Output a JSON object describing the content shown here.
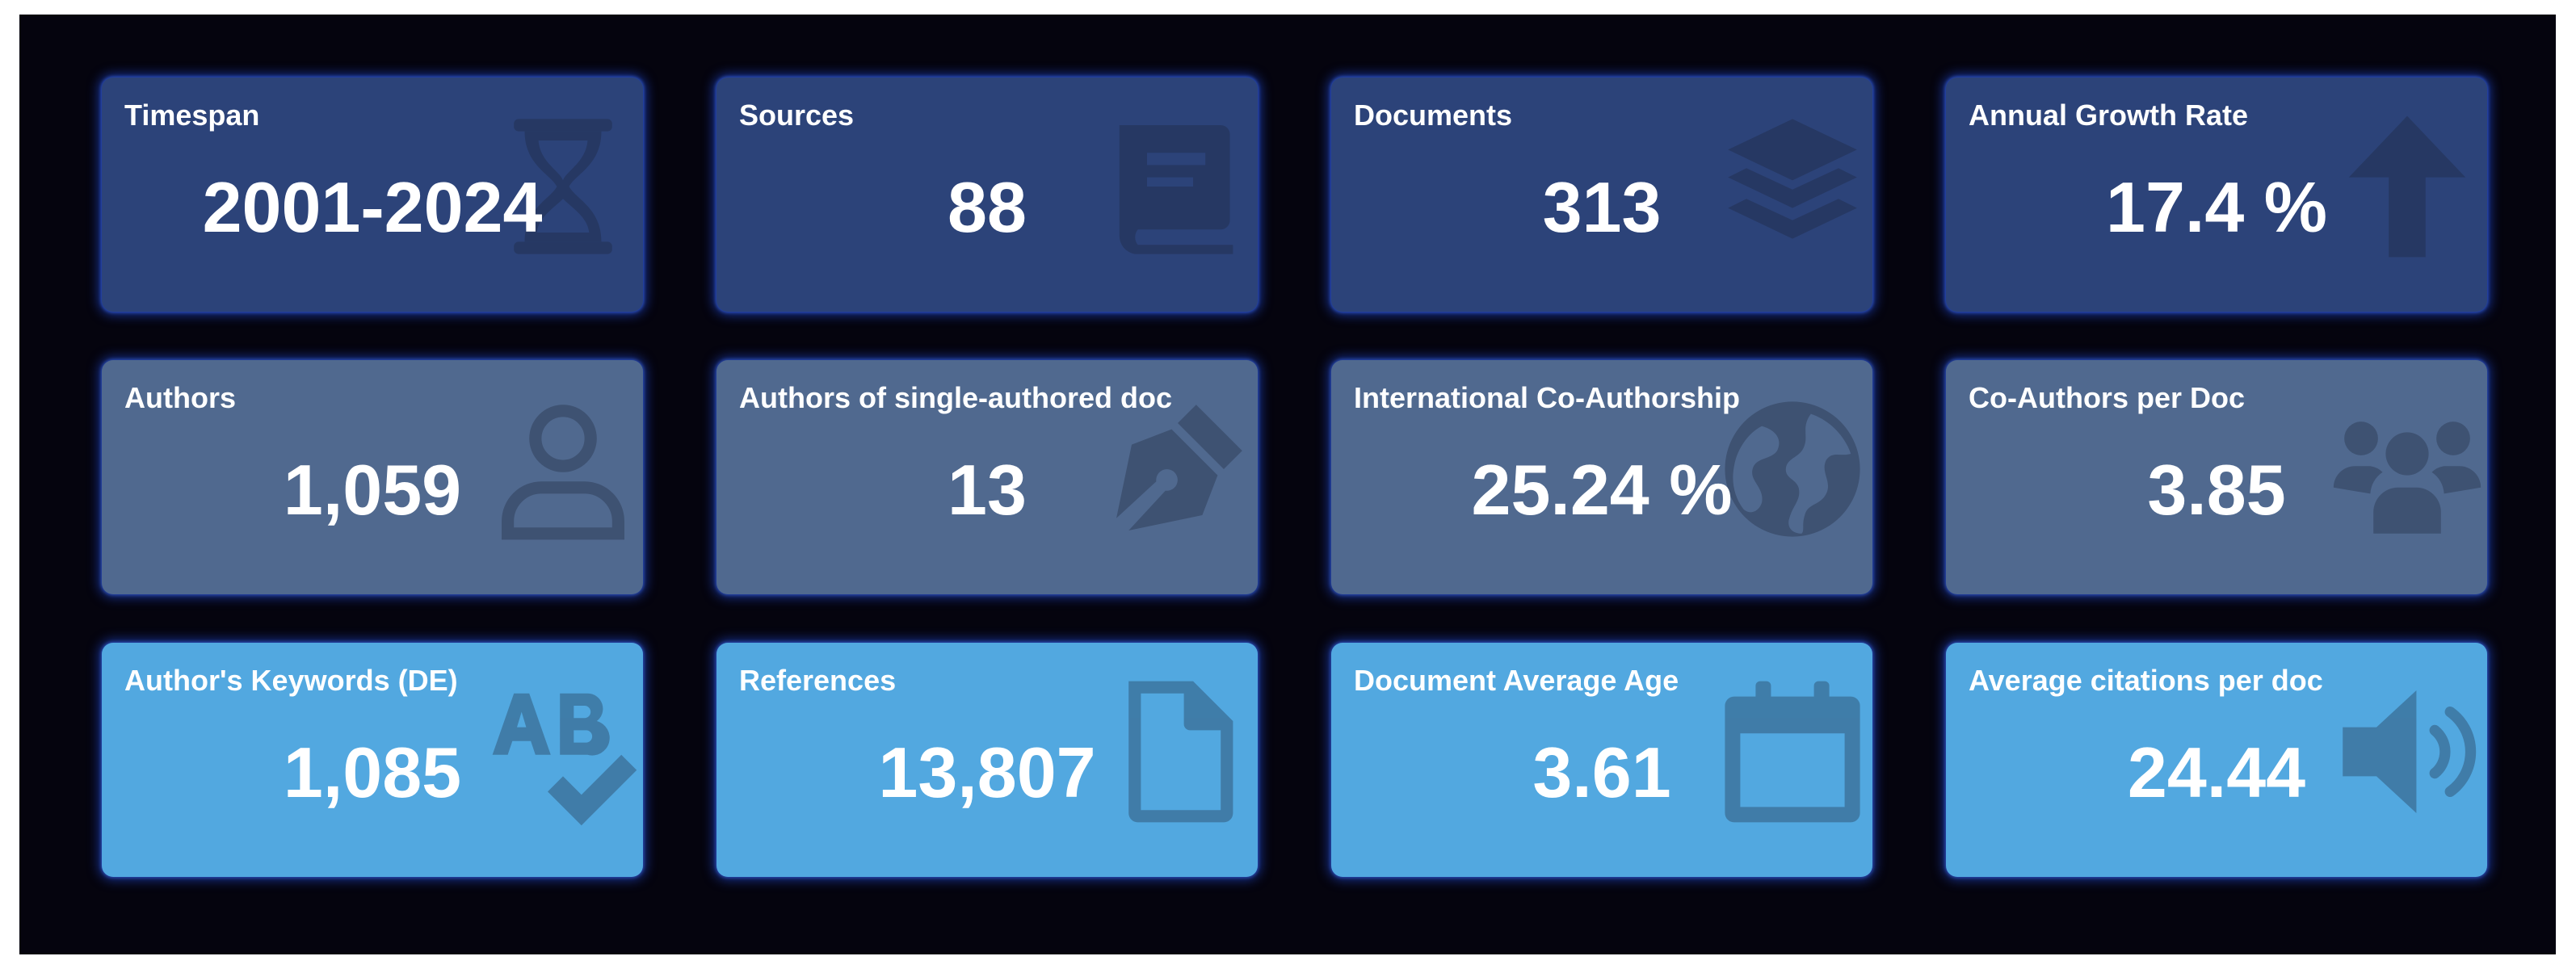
{
  "colors": {
    "background": "#05040e",
    "row_1_card": "#2c4379",
    "row_2_card": "#50698f",
    "row_3_card": "#52a8e0",
    "glow": "#2a5cff"
  },
  "cards": [
    {
      "label": "Timespan",
      "value": "2001-2024",
      "icon": "hourglass-icon"
    },
    {
      "label": "Sources",
      "value": "88",
      "icon": "book-icon"
    },
    {
      "label": "Documents",
      "value": "313",
      "icon": "layers-icon"
    },
    {
      "label": "Annual Growth Rate",
      "value": "17.4 %",
      "icon": "arrow-up-icon"
    },
    {
      "label": "Authors",
      "value": "1,059",
      "icon": "user-icon"
    },
    {
      "label": "Authors of single-authored doc",
      "value": "13",
      "icon": "pen-nib-icon"
    },
    {
      "label": "International Co-Authorship",
      "value": "25.24 %",
      "icon": "globe-icon"
    },
    {
      "label": "Co-Authors per Doc",
      "value": "3.85",
      "icon": "users-icon"
    },
    {
      "label": "Author's Keywords (DE)",
      "value": "1,085",
      "icon": "spell-check-icon"
    },
    {
      "label": "References",
      "value": "13,807",
      "icon": "file-icon"
    },
    {
      "label": "Document Average Age",
      "value": "3.61",
      "icon": "calendar-icon"
    },
    {
      "label": "Average citations per doc",
      "value": "24.44",
      "icon": "volume-icon"
    }
  ]
}
